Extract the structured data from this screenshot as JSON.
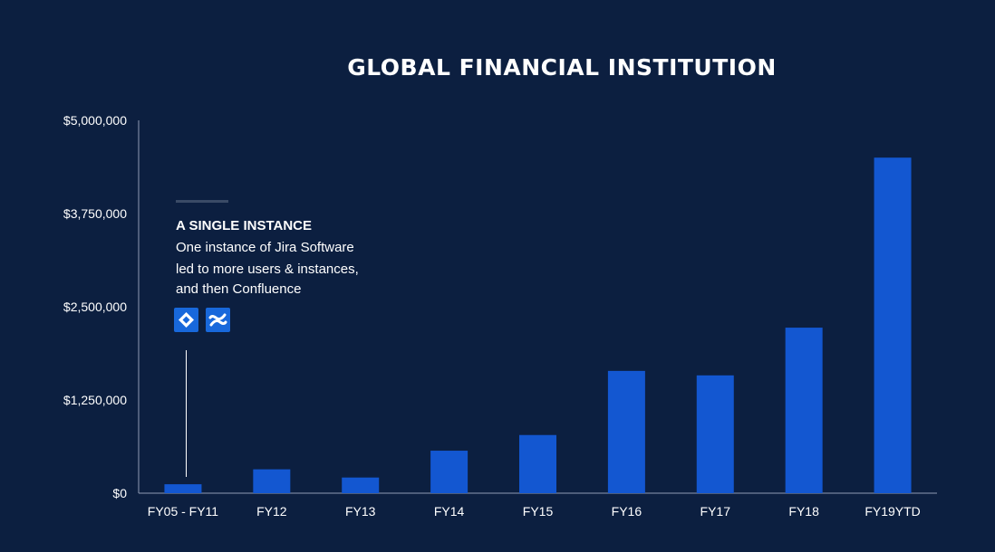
{
  "colors": {
    "background": "#0c1f40",
    "bar": "#1357d1",
    "axis": "#8f9bb3",
    "text": "#ffffff",
    "annotation_rule": "#3a4a66",
    "icon_bg": "#1868db"
  },
  "annotation": {
    "heading": "A SINGLE INSTANCE",
    "lines": [
      "One instance of Jira Software",
      "led to more users & instances,",
      "and then Confluence"
    ],
    "icons": [
      "jira-software-icon",
      "confluence-icon"
    ],
    "points_to_category": "FY05 - FY11"
  },
  "chart_data": {
    "type": "bar",
    "title": "GLOBAL FINANCIAL INSTITUTION",
    "xlabel": "",
    "ylabel": "",
    "categories": [
      "FY05 - FY11",
      "FY12",
      "FY13",
      "FY14",
      "FY15",
      "FY16",
      "FY17",
      "FY18",
      "FY19YTD"
    ],
    "values": [
      120000,
      320000,
      210000,
      570000,
      780000,
      1640000,
      1580000,
      2220000,
      4500000
    ],
    "ylim": [
      0,
      5000000
    ],
    "yticks": [
      0,
      1250000,
      2500000,
      3750000,
      5000000
    ],
    "ytick_labels": [
      "$0",
      "$1,250,000",
      "$2,500,000",
      "$3,750,000",
      "$5,000,000"
    ],
    "grid": false,
    "legend": "none"
  }
}
